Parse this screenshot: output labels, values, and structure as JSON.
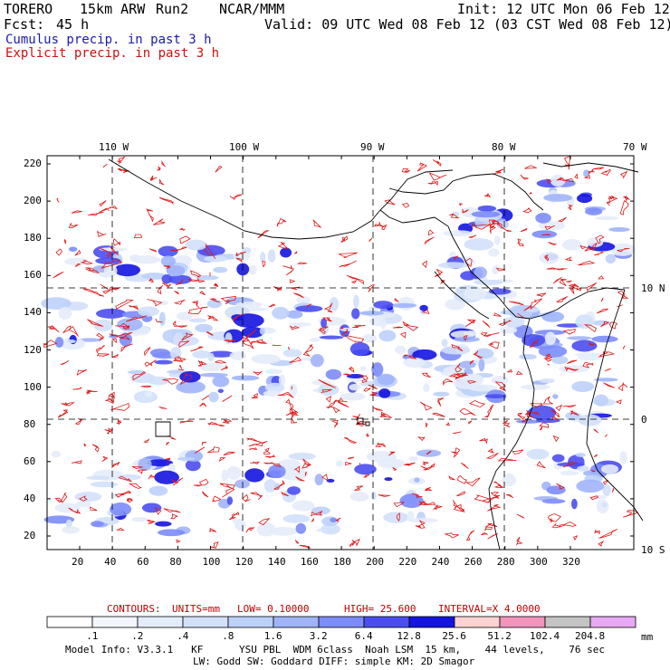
{
  "header": {
    "model": "TORERO",
    "resolution": "15km ARW",
    "run": "Run2",
    "org": "NCAR/MMM",
    "init": "Init: 12 UTC Mon 06 Feb 12",
    "fcst_label": "Fcst:",
    "fcst_value": "45 h",
    "valid": "Valid: 09 UTC Wed 08 Feb 12 (03 CST Wed 08 Feb 12)"
  },
  "fields": {
    "cumulus": "Cumulus precip. in past 3 h",
    "explicit": "Explicit precip. in past 3 h"
  },
  "lon_labels": [
    "110 W",
    "100 W",
    "90 W",
    "80 W",
    "70 W"
  ],
  "lat_labels": [
    "10 N",
    "0",
    "10 S"
  ],
  "y_ticks": [
    "220",
    "200",
    "180",
    "160",
    "140",
    "120",
    "100",
    "80",
    "60",
    "40",
    "20"
  ],
  "x_ticks": [
    "20",
    "40",
    "60",
    "80",
    "100",
    "120",
    "140",
    "160",
    "180",
    "200",
    "220",
    "240",
    "260",
    "280",
    "300",
    "320"
  ],
  "contours": {
    "label": "CONTOURS:",
    "units": "UNITS=mm",
    "low": "LOW= 0.10000",
    "high": "HIGH= 25.600",
    "interval": "INTERVAL=X 4.0000"
  },
  "colorbar": {
    "labels": [
      ".1",
      ".2",
      ".4",
      ".8",
      "1.6",
      "3.2",
      "6.4",
      "12.8",
      "25.6",
      "51.2",
      "102.4",
      "204.8"
    ],
    "unit": "mm",
    "colors": [
      "#ffffff",
      "#f2f6fc",
      "#e4ecfa",
      "#d2e0fa",
      "#bcd0fa",
      "#a0b4fa",
      "#7c8cfa",
      "#4a4ef0",
      "#1414e0",
      "#fcd2d2",
      "#f294bc",
      "#c4c4c4",
      "#e8a8f4"
    ]
  },
  "model_info": {
    "line1": "Model Info: V3.3.1   KF      YSU PBL  WDM 6class  Noah LSM  15 km,    44 levels,    76 sec",
    "line2": "LW: Godd SW: Goddard DIFF: simple KM: 2D Smagor"
  }
}
